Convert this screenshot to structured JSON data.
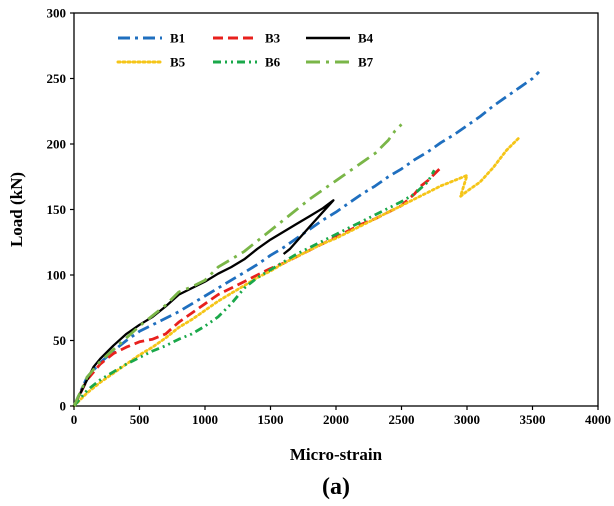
{
  "chart_data": {
    "type": "line",
    "title": "",
    "caption": "(a)",
    "xlabel": "Micro-strain",
    "ylabel": "Load (kN)",
    "xlim": [
      0,
      4000
    ],
    "ylim": [
      0,
      300
    ],
    "xticks": [
      0,
      500,
      1000,
      1500,
      2000,
      2500,
      3000,
      3500,
      4000
    ],
    "yticks": [
      0,
      50,
      100,
      150,
      200,
      250,
      300
    ],
    "grid": false,
    "legend": "top-left",
    "series": [
      {
        "name": "B1",
        "color": "#1f6fbf",
        "dash": "dashdot",
        "x": [
          0,
          100,
          200,
          300,
          400,
          500,
          600,
          700,
          800,
          900,
          1000,
          1100,
          1200,
          1300,
          1400,
          1500,
          1600,
          1700,
          1800,
          1900,
          2000,
          2100,
          2200,
          2300,
          2400,
          2500,
          2600,
          2700,
          2800,
          2900,
          3000,
          3100,
          3200,
          3300,
          3400,
          3500,
          3550
        ],
        "y": [
          0,
          22,
          33,
          42,
          50,
          57,
          62,
          67,
          72,
          78,
          84,
          90,
          96,
          102,
          108,
          115,
          121,
          128,
          135,
          142,
          148,
          155,
          162,
          168,
          175,
          181,
          188,
          194,
          201,
          207,
          214,
          221,
          229,
          236,
          243,
          250,
          255
        ]
      },
      {
        "name": "B3",
        "color": "#e8201d",
        "dash": "dash",
        "x": [
          0,
          100,
          200,
          300,
          400,
          500,
          600,
          700,
          800,
          900,
          1000,
          1100,
          1200,
          1300,
          1400,
          1500,
          1600,
          1700,
          1800,
          1900,
          2000,
          2100,
          2200,
          2300,
          2400,
          2500,
          2600,
          2650,
          2700,
          2800
        ],
        "y": [
          0,
          20,
          32,
          40,
          45,
          49,
          51,
          55,
          64,
          71,
          78,
          85,
          90,
          95,
          100,
          105,
          109,
          114,
          119,
          124,
          129,
          134,
          139,
          143,
          148,
          153,
          162,
          168,
          172,
          182
        ]
      },
      {
        "name": "B4",
        "color": "#000000",
        "dash": "solid",
        "x": [
          0,
          100,
          150,
          200,
          300,
          400,
          500,
          600,
          700,
          800,
          900,
          1000,
          1100,
          1200,
          1300,
          1400,
          1500,
          1600,
          1700,
          1800,
          1900,
          1980,
          1800,
          1650,
          1600
        ],
        "y": [
          0,
          20,
          30,
          36,
          46,
          55,
          62,
          68,
          76,
          85,
          90,
          95,
          101,
          106,
          112,
          120,
          127,
          133,
          139,
          145,
          151,
          157,
          137,
          120,
          116
        ]
      },
      {
        "name": "B5",
        "color": "#f5c518",
        "dash": "dot",
        "x": [
          0,
          100,
          200,
          300,
          400,
          500,
          600,
          700,
          800,
          900,
          1000,
          1100,
          1200,
          1300,
          1400,
          1500,
          1600,
          1700,
          1800,
          1900,
          2000,
          2100,
          2200,
          2300,
          2400,
          2500,
          2600,
          2700,
          2800,
          2900,
          3000,
          2950,
          3000,
          3100,
          3200,
          3300,
          3400
        ],
        "y": [
          0,
          10,
          18,
          25,
          32,
          39,
          45,
          52,
          60,
          66,
          73,
          80,
          86,
          92,
          98,
          103,
          109,
          114,
          119,
          124,
          128,
          133,
          138,
          143,
          148,
          153,
          158,
          163,
          168,
          172,
          176,
          160,
          164,
          171,
          182,
          195,
          205
        ]
      },
      {
        "name": "B6",
        "color": "#1aa84a",
        "dash": "dashdotdot",
        "x": [
          0,
          100,
          200,
          300,
          400,
          500,
          600,
          700,
          800,
          900,
          1000,
          1100,
          1200,
          1300,
          1400,
          1500,
          1600,
          1700,
          1800,
          1900,
          2000,
          2100,
          2200,
          2300,
          2400,
          2500,
          2600,
          2700,
          2750
        ],
        "y": [
          0,
          12,
          20,
          26,
          32,
          37,
          42,
          46,
          51,
          55,
          61,
          68,
          78,
          90,
          98,
          104,
          110,
          116,
          121,
          126,
          131,
          136,
          141,
          146,
          151,
          156,
          162,
          171,
          180
        ]
      },
      {
        "name": "B7",
        "color": "#7ab648",
        "dash": "longdash",
        "x": [
          0,
          100,
          200,
          300,
          400,
          500,
          600,
          700,
          800,
          900,
          1000,
          1100,
          1200,
          1300,
          1400,
          1500,
          1600,
          1700,
          1800,
          1900,
          2000,
          2100,
          2200,
          2300,
          2400,
          2450,
          2500
        ],
        "y": [
          0,
          22,
          34,
          43,
          52,
          61,
          69,
          77,
          87,
          91,
          96,
          106,
          112,
          118,
          126,
          134,
          142,
          150,
          158,
          165,
          172,
          179,
          186,
          193,
          203,
          210,
          215
        ]
      }
    ]
  }
}
